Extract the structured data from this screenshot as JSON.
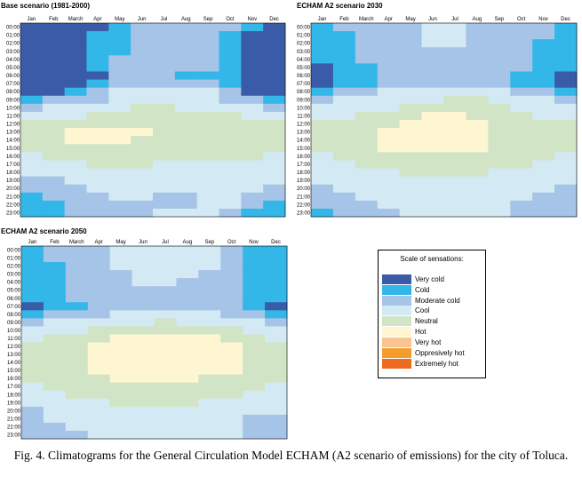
{
  "chart_data": [
    {
      "type": "heatmap",
      "title": "Base scenario (1981-2000)",
      "grid": "10:1B2:2NV:3,12:2BR:3,1F:2K:3,12:2F:4,1J:5NS:6,2B:5NS:6,3B:5NS:6,3F:5NS:6,3N:5NS:6,3R:5NS:6,4B:5NS:6,4F:5NS:6,4N:5NS:6,4R:5NS:6,4V:5NS:6"
    },
    {
      "type": "heatmap",
      "title": "ECHAM A2 scenario 2030",
      "grid": "11:2BR:3,1F:2K:3,12:2F:3,1J:4,1N:5NS:6,2B:5NS:6,3B:5NS:6,3F:5NS:6,3N:5NS:6,3R:5NS:6,4B:5NS:6,4F:5NS:6,4N:5NS:6,4R:5NS:6,4V:5NS:6"
    },
    {
      "type": "heatmap",
      "title": "ECHAM A2 scenario 2050",
      "grid": "11:2BR:3,1F:2K:3,12:2F:4,1J:5NS:6,1N:5NS:6,2B:5NS:6,3B:5NS:6,3F:5NS:6,3N:5NS:6,3R:5NS:6,4B:5NS:6,4F:5NS:6,4N:5NS:6,4R:5NS:6,4V:5NS:6"
    }
  ],
  "months": [
    "Jan",
    "Feb",
    "March",
    "Apr",
    "May",
    "Jun",
    "Jul",
    "Aug",
    "Sep",
    "Oct",
    "Nov",
    "Dec"
  ],
  "hours": [
    "00:00",
    "01:00",
    "02:00",
    "03:00",
    "04:00",
    "05:00",
    "06:00",
    "07:00",
    "08:00",
    "09:00",
    "10:00",
    "11:00",
    "12:00",
    "13:00",
    "14:00",
    "15:00",
    "16:00",
    "17:00",
    "18:00",
    "19:00",
    "20:00",
    "21:00",
    "22:00",
    "23:00"
  ],
  "legend": {
    "title": "Scale of sensations:",
    "items": [
      {
        "label": "Very cold",
        "color": "#3a5ba8"
      },
      {
        "label": "Cold",
        "color": "#33b7e8"
      },
      {
        "label": "Moderate cold",
        "color": "#a6c4e8"
      },
      {
        "label": "Cool",
        "color": "#d3e9f3"
      },
      {
        "label": "Neutral",
        "color": "#d1e4c6"
      },
      {
        "label": "Hot",
        "color": "#fdf6d1"
      },
      {
        "label": "Very hot",
        "color": "#f9c392"
      },
      {
        "label": "Oppresively hot",
        "color": "#f59d2a"
      },
      {
        "label": "Extremely hot",
        "color": "#ed6a1f"
      }
    ]
  },
  "caption": "Fig. 4. Climatograms for the General Circulation Model ECHAM (A2 scenario of emissions) for the city of Toluca."
}
